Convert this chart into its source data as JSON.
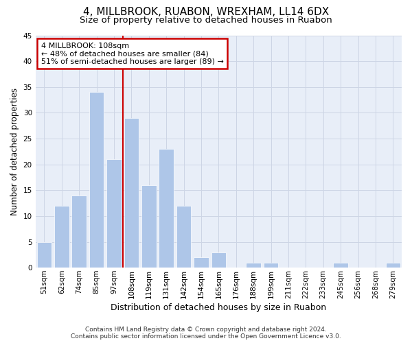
{
  "title1": "4, MILLBROOK, RUABON, WREXHAM, LL14 6DX",
  "title2": "Size of property relative to detached houses in Ruabon",
  "xlabel": "Distribution of detached houses by size in Ruabon",
  "ylabel": "Number of detached properties",
  "categories": [
    "51sqm",
    "62sqm",
    "74sqm",
    "85sqm",
    "97sqm",
    "108sqm",
    "119sqm",
    "131sqm",
    "142sqm",
    "154sqm",
    "165sqm",
    "176sqm",
    "188sqm",
    "199sqm",
    "211sqm",
    "222sqm",
    "233sqm",
    "245sqm",
    "256sqm",
    "268sqm",
    "279sqm"
  ],
  "values": [
    5,
    12,
    14,
    34,
    21,
    29,
    16,
    23,
    12,
    2,
    3,
    0,
    1,
    1,
    0,
    0,
    0,
    1,
    0,
    0,
    1
  ],
  "bar_color": "#aec6e8",
  "bar_edge_color": "#ffffff",
  "redline_index": 5,
  "annotation_line1": "4 MILLBROOK: 108sqm",
  "annotation_line2": "← 48% of detached houses are smaller (84)",
  "annotation_line3": "51% of semi-detached houses are larger (89) →",
  "annotation_box_color": "#ffffff",
  "annotation_box_edge": "#cc0000",
  "redline_color": "#cc0000",
  "ylim": [
    0,
    45
  ],
  "yticks": [
    0,
    5,
    10,
    15,
    20,
    25,
    30,
    35,
    40,
    45
  ],
  "grid_color": "#cdd5e5",
  "background_color": "#e8eef8",
  "footer1": "Contains HM Land Registry data © Crown copyright and database right 2024.",
  "footer2": "Contains public sector information licensed under the Open Government Licence v3.0.",
  "title1_fontsize": 11,
  "title2_fontsize": 9.5,
  "xlabel_fontsize": 9,
  "ylabel_fontsize": 8.5,
  "tick_fontsize": 7.5,
  "footer_fontsize": 6.5,
  "annotation_fontsize": 8
}
